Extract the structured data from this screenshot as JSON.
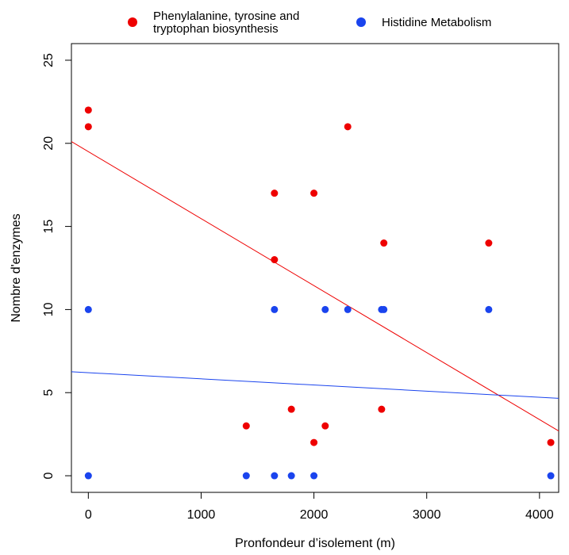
{
  "chart_data": {
    "type": "scatter",
    "title": "",
    "xlabel": "Pronfondeur d’isolement (m)",
    "ylabel": "Nombre d'enzymes",
    "xlim": [
      -150,
      4170
    ],
    "ylim": [
      -1,
      26
    ],
    "x_ticks": [
      0,
      1000,
      2000,
      3000,
      4000
    ],
    "y_ticks": [
      0,
      5,
      10,
      15,
      20,
      25
    ],
    "grid": false,
    "legend_position": "top",
    "series": [
      {
        "name": "Phenylalanine, tyrosine and tryptophan biosynthesis",
        "legend_lines": [
          "Phenylalanine, tyrosine and",
          "tryptophan biosynthesis"
        ],
        "color": "#ee0000",
        "points": [
          [
            0,
            22
          ],
          [
            0,
            21
          ],
          [
            1400,
            3
          ],
          [
            1650,
            17
          ],
          [
            1650,
            13
          ],
          [
            1800,
            4
          ],
          [
            2000,
            17
          ],
          [
            2000,
            2
          ],
          [
            2100,
            3
          ],
          [
            2300,
            21
          ],
          [
            2600,
            4
          ],
          [
            2620,
            14
          ],
          [
            3550,
            14
          ],
          [
            4100,
            2
          ]
        ],
        "regression": {
          "intercept": 19.5,
          "slope": -0.00403
        }
      },
      {
        "name": "Histidine Metabolism",
        "legend_lines": [
          "Histidine Metabolism"
        ],
        "color": "#1a44ee",
        "points": [
          [
            0,
            10
          ],
          [
            0,
            0
          ],
          [
            1400,
            0
          ],
          [
            1650,
            10
          ],
          [
            1650,
            0
          ],
          [
            1800,
            0
          ],
          [
            2000,
            0
          ],
          [
            2100,
            10
          ],
          [
            2300,
            10
          ],
          [
            2600,
            10
          ],
          [
            2620,
            10
          ],
          [
            3550,
            10
          ],
          [
            4100,
            0
          ]
        ],
        "regression": {
          "intercept": 6.2,
          "slope": -0.00037
        }
      }
    ]
  }
}
